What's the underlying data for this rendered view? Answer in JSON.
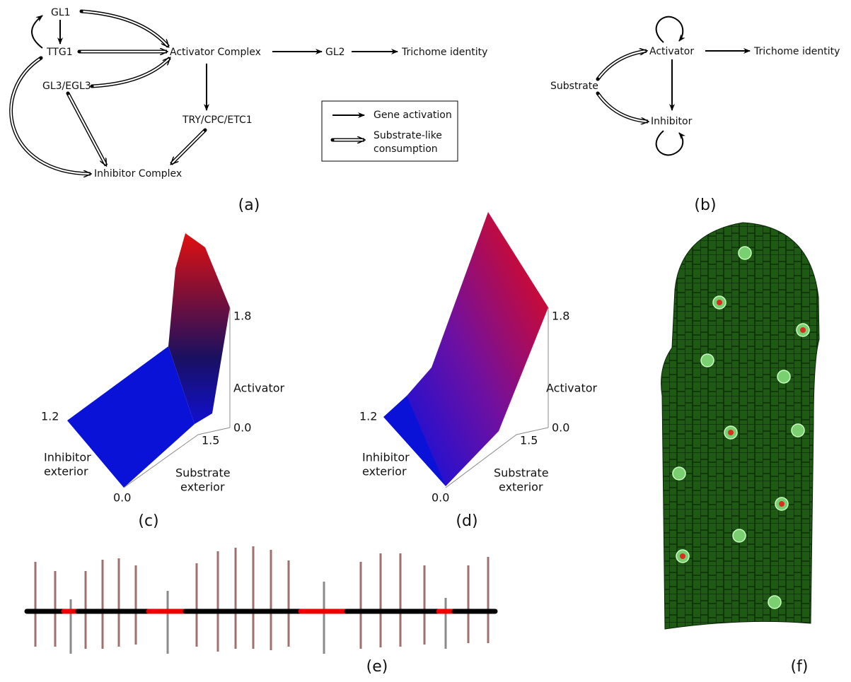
{
  "panel_a": {
    "label": "(a)",
    "nodes": [
      "GL1",
      "TTG1",
      "GL3/EGL3",
      "Activator Complex",
      "GL2",
      "Trichome identity",
      "TRY/CPC/ETC1",
      "Inhibitor Complex"
    ],
    "legend": {
      "activation": "Gene activation",
      "consumption": [
        "Substrate-like",
        "consumption"
      ]
    }
  },
  "panel_b": {
    "label": "(b)",
    "nodes": [
      "Activator",
      "Trichome identity",
      "Substrate",
      "Inhibitor"
    ]
  },
  "panel_c": {
    "label": "(c)",
    "z_top": "1.8",
    "z_label": "Activator",
    "z_bottom": "0.0",
    "inhibitor_max": "1.2",
    "inhibitor_label": [
      "Inhibitor",
      "exterior"
    ],
    "substrate_max": "1.5",
    "substrate_label": [
      "Substrate",
      "exterior"
    ],
    "origin": "0.0"
  },
  "panel_d": {
    "label": "(d)",
    "z_top": "1.8",
    "z_label": "Activator",
    "z_bottom": "0.0",
    "inhibitor_max": "1.2",
    "inhibitor_label": [
      "Inhibitor",
      "exterior"
    ],
    "substrate_max": "1.5",
    "substrate_label": [
      "Substrate",
      "exterior"
    ],
    "origin": "0.0"
  },
  "panel_e": {
    "label": "(e)"
  },
  "panel_f": {
    "label": "(f)"
  }
}
